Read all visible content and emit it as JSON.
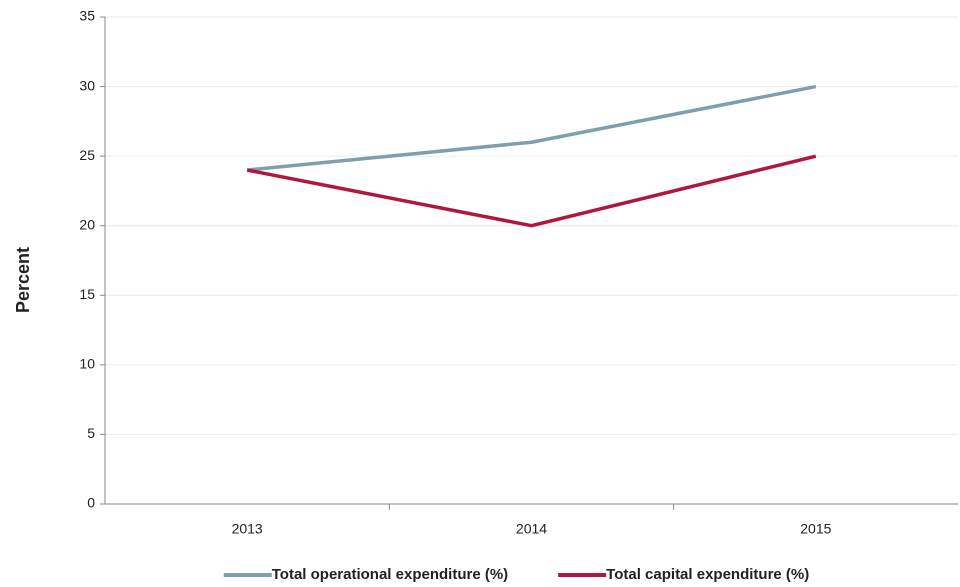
{
  "chart_data": {
    "type": "line",
    "y_label": "Percent",
    "categories": [
      "2013",
      "2014",
      "2015"
    ],
    "series": [
      {
        "name": "Total operational expenditure (%)",
        "color": "#7f9faf",
        "values": [
          24,
          26,
          30
        ]
      },
      {
        "name": "Total capital expenditure (%)",
        "color": "#b0173a",
        "values": [
          24,
          20,
          25
        ]
      }
    ],
    "ylim": [
      0,
      35
    ],
    "yticks": [
      0,
      5,
      10,
      15,
      20,
      25,
      30,
      35
    ],
    "grid": true,
    "legend": "bottom"
  }
}
